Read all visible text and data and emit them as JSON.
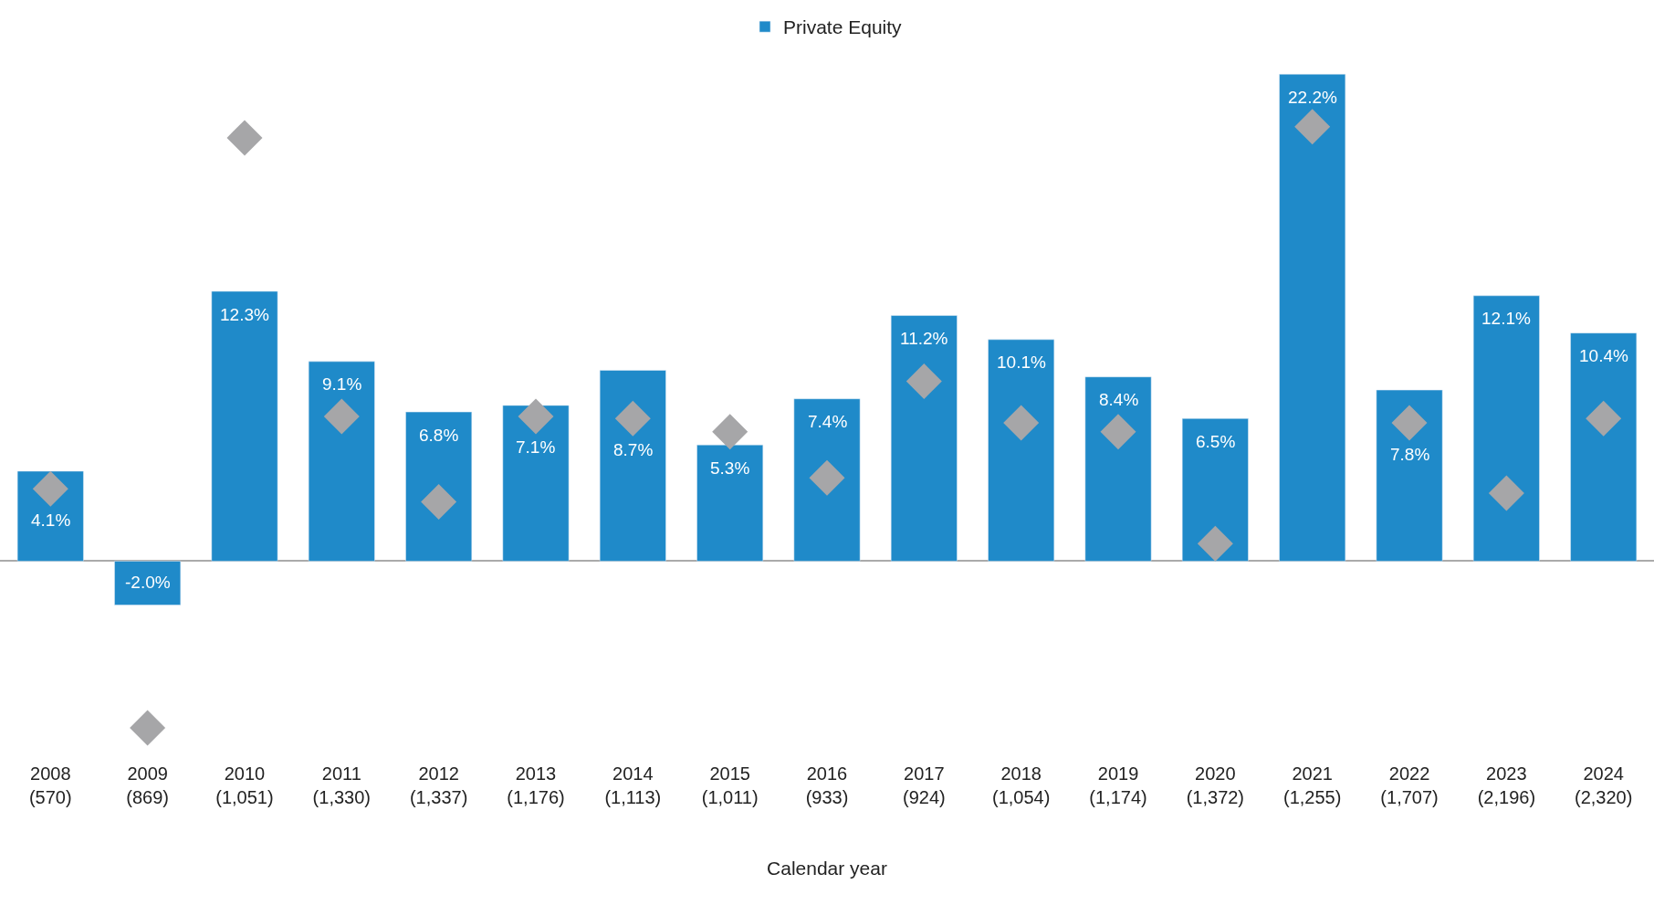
{
  "chart_data": {
    "type": "bar",
    "xlabel": "Calendar year",
    "categories": [
      "2008\n(570)",
      "2009\n(869)",
      "2010\n(1,051)",
      "2011\n(1,330)",
      "2012\n(1,337)",
      "2013\n(1,176)",
      "2014\n(1,113)",
      "2015\n(1,011)",
      "2016\n(933)",
      "2017\n(924)",
      "2018\n(1,054)",
      "2019\n(1,174)",
      "2020\n(1,372)",
      "2021\n(1,255)",
      "2022\n(1,707)",
      "2023\n(2,196)",
      "2024\n(2,320)"
    ],
    "series": [
      {
        "name": "Private Equity",
        "color": "#1f8ac9",
        "values": [
          4.1,
          -2.0,
          12.3,
          9.1,
          6.8,
          7.1,
          8.7,
          5.3,
          7.4,
          11.2,
          10.1,
          8.4,
          6.5,
          22.2,
          7.8,
          12.1,
          10.4
        ],
        "value_labels": [
          "4.1%",
          "-2.0%",
          "12.3%",
          "9.1%",
          "6.8%",
          "7.1%",
          "8.7%",
          "5.3%",
          "7.4%",
          "11.2%",
          "10.1%",
          "8.4%",
          "6.5%",
          "22.2%",
          "7.8%",
          "12.1%",
          "10.4%"
        ]
      },
      {
        "type": "scatter",
        "color": "#a6a6a8",
        "marker": "diamond",
        "values": [
          3.3,
          -7.6,
          19.3,
          6.6,
          2.7,
          6.6,
          6.5,
          5.9,
          3.8,
          8.2,
          6.3,
          5.9,
          0.8,
          19.8,
          6.3,
          3.1,
          6.5
        ]
      }
    ],
    "legend": "top"
  }
}
